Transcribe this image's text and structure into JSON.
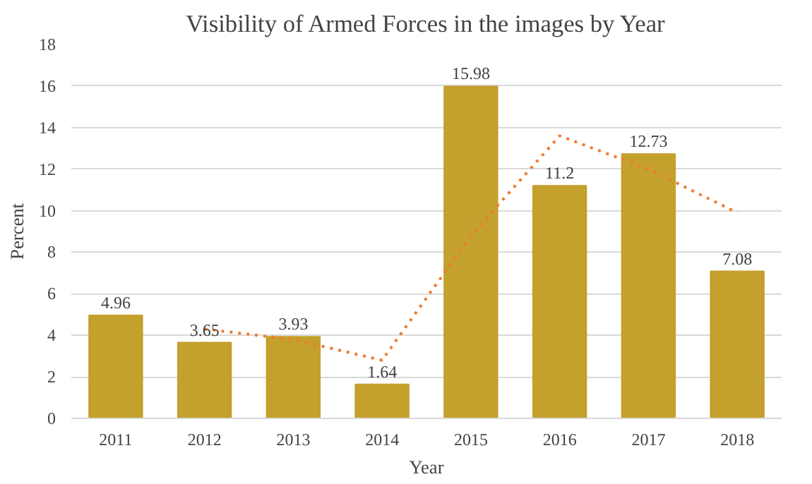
{
  "chart_data": {
    "type": "bar",
    "title": "Visibility of Armed Forces in the images by Year",
    "xlabel": "Year",
    "ylabel": "Percent",
    "categories": [
      "2011",
      "2012",
      "2013",
      "2014",
      "2015",
      "2016",
      "2017",
      "2018"
    ],
    "series": [
      {
        "color": "#c4a02c",
        "values": [
          4.96,
          3.65,
          3.93,
          1.64,
          15.98,
          11.2,
          12.73,
          7.08
        ],
        "value_labels": [
          "4.96",
          "3.65",
          "3.93",
          "1.64",
          "15.98",
          "11.2",
          "12.73",
          "7.08"
        ]
      },
      {
        "type": "line",
        "color": "#ed7d31",
        "line_style": "dotted",
        "values": [
          null,
          4.3,
          3.8,
          2.8,
          8.8,
          13.6,
          12.0,
          9.9
        ]
      }
    ],
    "ylim": [
      0,
      18
    ],
    "yticks": [
      0,
      2,
      4,
      6,
      8,
      10,
      12,
      14,
      16,
      18
    ],
    "grid": "y"
  }
}
